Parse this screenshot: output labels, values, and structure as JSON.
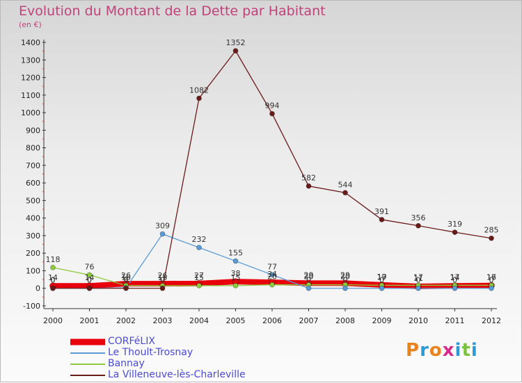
{
  "header": {
    "title": "Evolution du Montant de la Dette par Habitant",
    "subtitle": "(en €)"
  },
  "logo": {
    "text": "Proxiti",
    "colors": [
      "#e8831e",
      "#2b9ad6",
      "#e8831e",
      "#d62b8a",
      "#2b9ad6",
      "#7cc242",
      "#2b9ad6"
    ]
  },
  "chart_data": {
    "type": "line",
    "x": [
      "2000",
      "2001",
      "2002",
      "2003",
      "2004",
      "2005",
      "2006",
      "2007",
      "2008",
      "2009",
      "2010",
      "2011",
      "2012"
    ],
    "ylim": [
      -100,
      1400
    ],
    "yticks": [
      -100,
      0,
      100,
      200,
      300,
      400,
      500,
      600,
      700,
      800,
      900,
      1000,
      1100,
      1200,
      1300,
      1400
    ],
    "grid": false,
    "legend_position": "bottom-left",
    "series": [
      {
        "name": "CORFéLIX",
        "color": "#e8000b",
        "values": [
          14,
          14,
          26,
          26,
          27,
          38,
          34,
          29,
          29,
          19,
          11,
          14,
          16
        ],
        "labels": [
          14,
          14,
          26,
          26,
          27,
          38,
          34,
          29,
          29,
          19,
          11,
          14,
          16
        ]
      },
      {
        "name": "Le Thoult-Trosnay",
        "color": "#5b9bd5",
        "values": [
          0,
          0,
          3,
          309,
          232,
          155,
          77,
          0,
          0,
          0,
          0,
          0,
          0
        ],
        "labels": [
          0,
          0,
          3,
          309,
          232,
          155,
          77,
          0,
          0,
          0,
          0,
          0,
          0
        ]
      },
      {
        "name": "Bannay",
        "color": "#8ccc3c",
        "values": [
          118,
          76,
          16,
          15,
          15,
          15,
          20,
          20,
          20,
          17,
          17,
          17,
          17
        ],
        "labels": [
          118,
          76,
          16,
          15,
          15,
          15,
          20,
          20,
          20,
          17,
          17,
          17,
          17
        ]
      },
      {
        "name": "La Villeneuve-lès-Charleville",
        "color": "#6b1a1a",
        "values": [
          0,
          0,
          0,
          0,
          1082,
          1352,
          994,
          582,
          544,
          391,
          356,
          319,
          285
        ],
        "labels": [
          0,
          0,
          0,
          0,
          1082,
          1352,
          994,
          582,
          544,
          391,
          356,
          319,
          285
        ]
      }
    ]
  }
}
